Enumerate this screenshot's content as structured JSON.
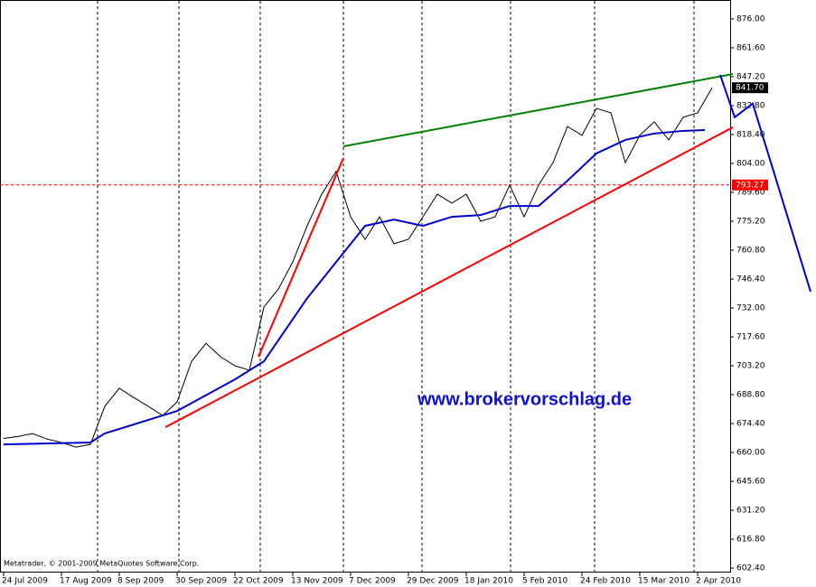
{
  "chart_data": {
    "type": "line",
    "watermark": "www.brokervorschlag.de",
    "copyright": "Metatrader, © 2001-2009 MetaQuotes Software Corp.",
    "xlim": [
      -1,
      201
    ],
    "ylim": [
      600.2,
      885.4
    ],
    "xticks": [
      {
        "value": 0,
        "label": "24 Jul 2009"
      },
      {
        "value": 16,
        "label": "17 Aug 2009"
      },
      {
        "value": 32,
        "label": "8 Sep 2009"
      },
      {
        "value": 48,
        "label": "30 Sep 2009"
      },
      {
        "value": 64,
        "label": "22 Oct 2009"
      },
      {
        "value": 80,
        "label": "13 Nov 2009"
      },
      {
        "value": 96,
        "label": "7 Dec 2009"
      },
      {
        "value": 112,
        "label": "29 Dec 2009"
      },
      {
        "value": 128,
        "label": "18 Jan 2010"
      },
      {
        "value": 144,
        "label": "5 Feb 2010"
      },
      {
        "value": 160,
        "label": "24 Feb 2010"
      },
      {
        "value": 176,
        "label": "15 Mar 2010"
      },
      {
        "value": 192,
        "label": "2 Apr 2010"
      }
    ],
    "yticks": [
      {
        "value": 876,
        "label": "876.00"
      },
      {
        "value": 861.6,
        "label": "861.60"
      },
      {
        "value": 847.2,
        "label": "847.20"
      },
      {
        "value": 832.8,
        "label": "832.80"
      },
      {
        "value": 818.4,
        "label": "818.40"
      },
      {
        "value": 804,
        "label": "804.00"
      },
      {
        "value": 789.6,
        "label": "789.60"
      },
      {
        "value": 775.2,
        "label": "775.20"
      },
      {
        "value": 760.8,
        "label": "760.80"
      },
      {
        "value": 746.4,
        "label": "746.40"
      },
      {
        "value": 732,
        "label": "732.00"
      },
      {
        "value": 717.6,
        "label": "717.60"
      },
      {
        "value": 703.2,
        "label": "703.20"
      },
      {
        "value": 688.8,
        "label": "688.80"
      },
      {
        "value": 674.4,
        "label": "674.40"
      },
      {
        "value": 660,
        "label": "660.00"
      },
      {
        "value": 645.6,
        "label": "645.60"
      },
      {
        "value": 631.2,
        "label": "631.20"
      },
      {
        "value": 616.8,
        "label": "616.80"
      },
      {
        "value": 602.4,
        "label": "602.40"
      }
    ],
    "hlines": [
      {
        "value": 793.27,
        "label": "793.27",
        "color": "#ff0000",
        "dashed": true
      },
      {
        "value": 841.7,
        "label": "841.70",
        "color": "#000000",
        "dashed": false
      }
    ],
    "series": [
      {
        "color": "#000000",
        "width": 1,
        "x": [
          0,
          4,
          8,
          12,
          16,
          20,
          24,
          28,
          32,
          36,
          40,
          44,
          48,
          52,
          56,
          60,
          64,
          68,
          72,
          76,
          80,
          84,
          88,
          92,
          96,
          100,
          104,
          108,
          112,
          116,
          120,
          124,
          128,
          132,
          136,
          140,
          144,
          148,
          152,
          156,
          160,
          164,
          168,
          172,
          176,
          180,
          184,
          188,
          192,
          196
        ],
        "values": [
          667,
          668,
          669.4,
          666.7,
          665,
          662.7,
          664,
          683,
          692,
          687.4,
          683,
          678.4,
          685.2,
          705.4,
          714.4,
          707.7,
          703.2,
          701,
          732.4,
          741.4,
          755,
          773,
          788.7,
          800,
          777.4,
          766.2,
          777.4,
          764,
          766.2,
          777.4,
          788.7,
          784.2,
          788.7,
          775.2,
          777.4,
          793.2,
          777.4,
          793.2,
          804.4,
          822.4,
          818,
          831.4,
          829.2,
          804.4,
          818,
          824.7,
          815.7,
          827,
          829.2,
          841.7
        ]
      },
      {
        "color": "#0000cc",
        "width": 2,
        "x": [
          0,
          24,
          28,
          48,
          64,
          72,
          84,
          92,
          100,
          108,
          116,
          124,
          132,
          140,
          148,
          156,
          164,
          172,
          180,
          188,
          194
        ],
        "values": [
          664,
          665,
          669.5,
          680.7,
          696.4,
          705.4,
          736.9,
          754.9,
          772.9,
          776,
          772.9,
          777.4,
          778.3,
          782.8,
          782.8,
          795.4,
          809,
          815.7,
          818.9,
          820.2,
          820.6
        ]
      },
      {
        "color": "#008000",
        "width": 2,
        "x": [
          94,
          201.75
        ],
        "values": [
          812.5,
          848.5
        ]
      },
      {
        "color": "#ff0000",
        "width": 2,
        "x": [
          44.75,
          201.75
        ],
        "values": [
          672.6,
          822
        ]
      },
      {
        "color": "#ff0000",
        "width": 2,
        "x": [
          70.5,
          94
        ],
        "values": [
          707.7,
          806.7
        ]
      },
      {
        "color": "#0000cc",
        "width": 2,
        "x": [
          198.25,
          202.25,
          207.25,
          223.25
        ],
        "values": [
          848.1,
          827,
          833.8,
          740.1
        ]
      }
    ]
  }
}
